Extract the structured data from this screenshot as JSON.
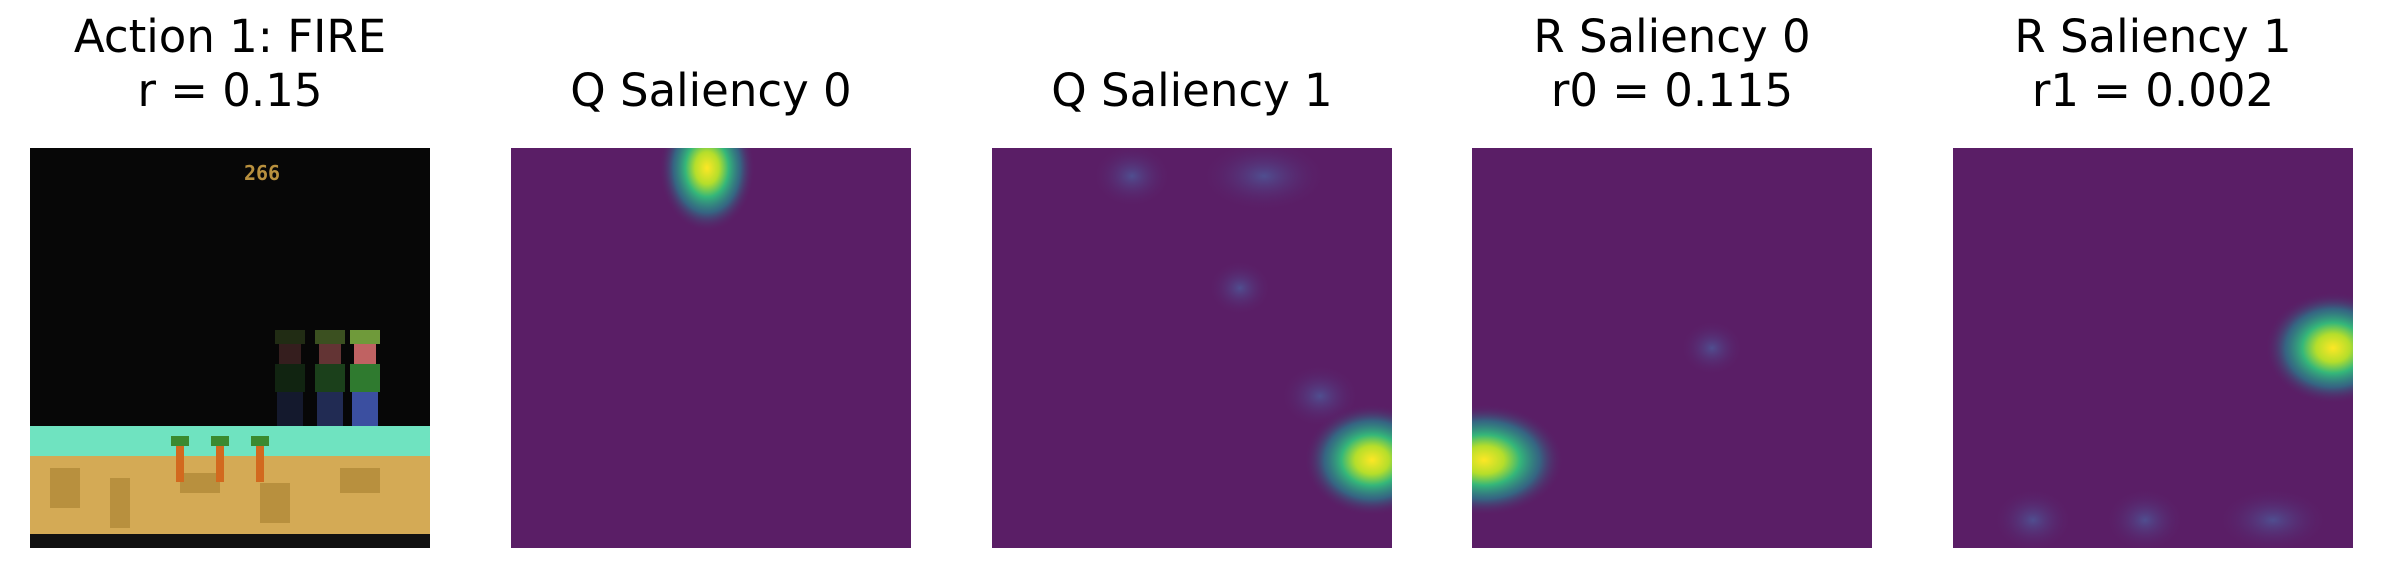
{
  "panels": [
    {
      "title": [
        "Action 1: FIRE",
        "r = 0.15"
      ]
    },
    {
      "title": [
        "Q Saliency 0"
      ]
    },
    {
      "title": [
        "Q Saliency 1"
      ]
    },
    {
      "title": [
        "R Saliency 0",
        "r0 = 0.115"
      ]
    },
    {
      "title": [
        "R Saliency 1",
        "r1 = 0.002"
      ]
    }
  ],
  "game": {
    "score": "266"
  }
}
